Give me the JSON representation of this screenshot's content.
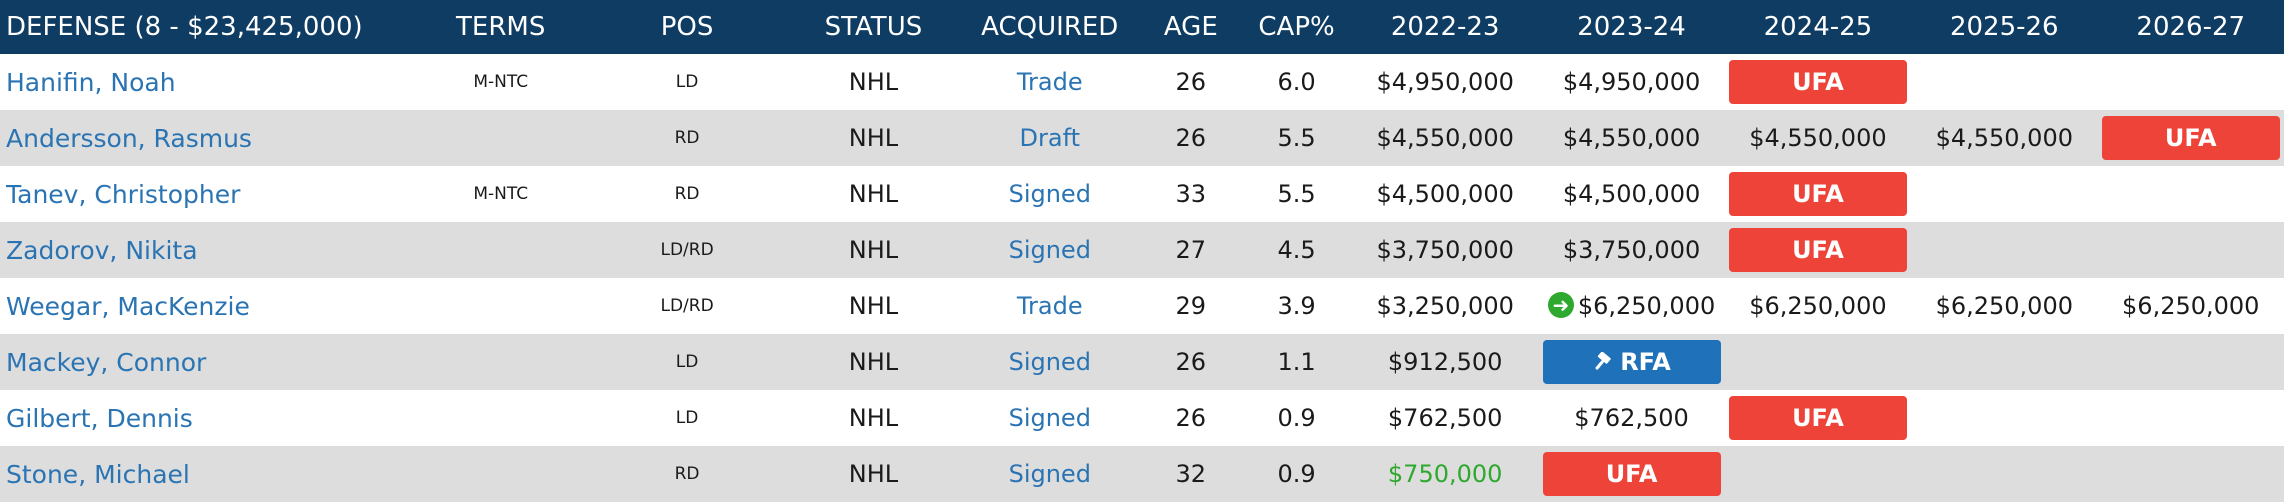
{
  "colors": {
    "header_bg": "#0f3c63",
    "alt_row": "#dddddd",
    "link": "#2a74b3",
    "ufa": "#ee4338",
    "rfa": "#1f72ba",
    "accent_green": "#2ea82e"
  },
  "headers": [
    "DEFENSE (8 - $23,425,000)",
    "TERMS",
    "POS",
    "STATUS",
    "ACQUIRED",
    "AGE",
    "CAP%",
    "2022-23",
    "2023-24",
    "2024-25",
    "2025-26",
    "2026-27"
  ],
  "rows": [
    {
      "name": "Hanifin, Noah",
      "terms": "M-NTC",
      "pos": "LD",
      "status": "NHL",
      "acquired": "Trade",
      "age": "26",
      "cap_pct": "6.0",
      "s2022": "$4,950,000",
      "s2023": "$4,950,000",
      "s2024": "UFA",
      "s2025": "",
      "s2026": ""
    },
    {
      "name": "Andersson, Rasmus",
      "terms": "",
      "pos": "RD",
      "status": "NHL",
      "acquired": "Draft",
      "age": "26",
      "cap_pct": "5.5",
      "s2022": "$4,550,000",
      "s2023": "$4,550,000",
      "s2024": "$4,550,000",
      "s2025": "$4,550,000",
      "s2026": "UFA"
    },
    {
      "name": "Tanev, Christopher",
      "terms": "M-NTC",
      "pos": "RD",
      "status": "NHL",
      "acquired": "Signed",
      "age": "33",
      "cap_pct": "5.5",
      "s2022": "$4,500,000",
      "s2023": "$4,500,000",
      "s2024": "UFA",
      "s2025": "",
      "s2026": ""
    },
    {
      "name": "Zadorov, Nikita",
      "terms": "",
      "pos": "LD/RD",
      "status": "NHL",
      "acquired": "Signed",
      "age": "27",
      "cap_pct": "4.5",
      "s2022": "$3,750,000",
      "s2023": "$3,750,000",
      "s2024": "UFA",
      "s2025": "",
      "s2026": ""
    },
    {
      "name": "Weegar, MacKenzie",
      "terms": "",
      "pos": "LD/RD",
      "status": "NHL",
      "acquired": "Trade",
      "age": "29",
      "cap_pct": "3.9",
      "s2022": "$3,250,000",
      "s2023": "$6,250,000",
      "s2024": "$6,250,000",
      "s2025": "$6,250,000",
      "s2026": "$6,250,000",
      "extension_icon": "arrow-right-circle-icon"
    },
    {
      "name": "Mackey, Connor",
      "terms": "",
      "pos": "LD",
      "status": "NHL",
      "acquired": "Signed",
      "age": "26",
      "cap_pct": "1.1",
      "s2022": "$912,500",
      "s2023": "RFA",
      "s2024": "",
      "s2025": "",
      "s2026": "",
      "rfa_icon": "gavel-icon"
    },
    {
      "name": "Gilbert, Dennis",
      "terms": "",
      "pos": "LD",
      "status": "NHL",
      "acquired": "Signed",
      "age": "26",
      "cap_pct": "0.9",
      "s2022": "$762,500",
      "s2023": "$762,500",
      "s2024": "UFA",
      "s2025": "",
      "s2026": ""
    },
    {
      "name": "Stone, Michael",
      "terms": "",
      "pos": "RD",
      "status": "NHL",
      "acquired": "Signed",
      "age": "32",
      "cap_pct": "0.9",
      "s2022": "$750,000",
      "s2023": "UFA",
      "s2024": "",
      "s2025": "",
      "s2026": "",
      "s2022_color": "green"
    }
  ]
}
